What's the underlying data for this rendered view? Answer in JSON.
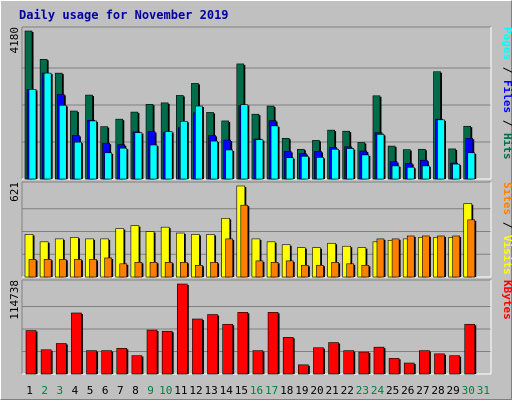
{
  "title": "Daily usage for November 2019",
  "colors": {
    "hits": "#006c49",
    "files": "#0000ff",
    "pages": "#00ffff",
    "visits": "#ffff00",
    "sites": "#ff8000",
    "kbytes": "#ff0000",
    "weekday_label": "#000000",
    "weekend_label": "#008040"
  },
  "chart_data": [
    {
      "type": "bar",
      "panel": "hits-files-pages",
      "max_label": "4180",
      "ylim": [
        0,
        4180
      ],
      "legend_placement": "right",
      "legend": [
        {
          "label": "Hits",
          "color": "#006c49"
        },
        {
          "label": "Files",
          "color": "#0000ff"
        },
        {
          "label": "Pages",
          "color": "#00ffff"
        }
      ],
      "series": [
        {
          "name": "Hits",
          "values": [
            4180,
            3380,
            2990,
            1920,
            2370,
            1480,
            1690,
            1890,
            2110,
            2150,
            2360,
            2700,
            1880,
            1640,
            3250,
            1830,
            2060,
            1150,
            840,
            1090,
            1380,
            1350,
            1030,
            2350,
            930,
            830,
            840,
            3030,
            850,
            1490,
            0
          ]
        },
        {
          "name": "Files",
          "values": [
            2530,
            2990,
            2390,
            1230,
            1660,
            1010,
            970,
            1330,
            1340,
            1310,
            1450,
            1870,
            1230,
            1100,
            2070,
            1130,
            1650,
            780,
            720,
            780,
            890,
            910,
            790,
            1310,
            490,
            440,
            530,
            1690,
            450,
            1150,
            0
          ]
        },
        {
          "name": "Pages",
          "values": [
            2530,
            2990,
            2080,
            1040,
            1640,
            740,
            870,
            1310,
            960,
            1340,
            1630,
            2060,
            1070,
            820,
            2100,
            1110,
            1500,
            600,
            640,
            610,
            840,
            860,
            680,
            1260,
            370,
            330,
            370,
            1670,
            420,
            740,
            0
          ]
        }
      ]
    },
    {
      "type": "bar",
      "panel": "visits-sites",
      "max_label": "621",
      "ylim": [
        0,
        621
      ],
      "legend_placement": "right",
      "legend": [
        {
          "label": "Visits",
          "color": "#ffff00"
        },
        {
          "label": "Sites",
          "color": "#ff8000"
        }
      ],
      "series": [
        {
          "name": "Visits",
          "values": [
            290,
            240,
            260,
            270,
            260,
            260,
            330,
            350,
            310,
            340,
            300,
            290,
            290,
            400,
            621,
            260,
            240,
            220,
            200,
            200,
            230,
            210,
            200,
            240,
            250,
            260,
            270,
            270,
            270,
            500,
            0
          ]
        },
        {
          "name": "Sites",
          "values": [
            120,
            120,
            120,
            120,
            120,
            130,
            90,
            100,
            100,
            100,
            100,
            80,
            100,
            260,
            490,
            110,
            100,
            110,
            80,
            80,
            100,
            90,
            80,
            260,
            260,
            280,
            280,
            280,
            280,
            390,
            0
          ]
        }
      ]
    },
    {
      "type": "bar",
      "panel": "kbytes",
      "max_label": "114738",
      "ylim": [
        0,
        114738
      ],
      "legend_placement": "right",
      "legend": [
        {
          "label": "KBytes",
          "color": "#ff0000"
        }
      ],
      "series": [
        {
          "name": "KBytes",
          "values": [
            55400,
            30900,
            38900,
            77800,
            29800,
            29800,
            32700,
            23400,
            56000,
            54500,
            114738,
            70100,
            75800,
            63400,
            78600,
            29800,
            78600,
            46700,
            11700,
            33500,
            40100,
            29800,
            28000,
            34200,
            19900,
            14000,
            29800,
            25700,
            23400,
            63400,
            0
          ]
        }
      ]
    }
  ],
  "x_axis": {
    "days": [
      "1",
      "2",
      "3",
      "4",
      "5",
      "6",
      "7",
      "8",
      "9",
      "10",
      "11",
      "12",
      "13",
      "14",
      "15",
      "16",
      "17",
      "18",
      "19",
      "20",
      "21",
      "22",
      "23",
      "24",
      "25",
      "26",
      "27",
      "28",
      "29",
      "30",
      "31"
    ],
    "weekend": [
      false,
      true,
      true,
      false,
      false,
      false,
      false,
      false,
      true,
      true,
      false,
      false,
      false,
      false,
      false,
      true,
      true,
      false,
      false,
      false,
      false,
      false,
      true,
      true,
      false,
      false,
      false,
      false,
      false,
      true,
      true
    ]
  }
}
